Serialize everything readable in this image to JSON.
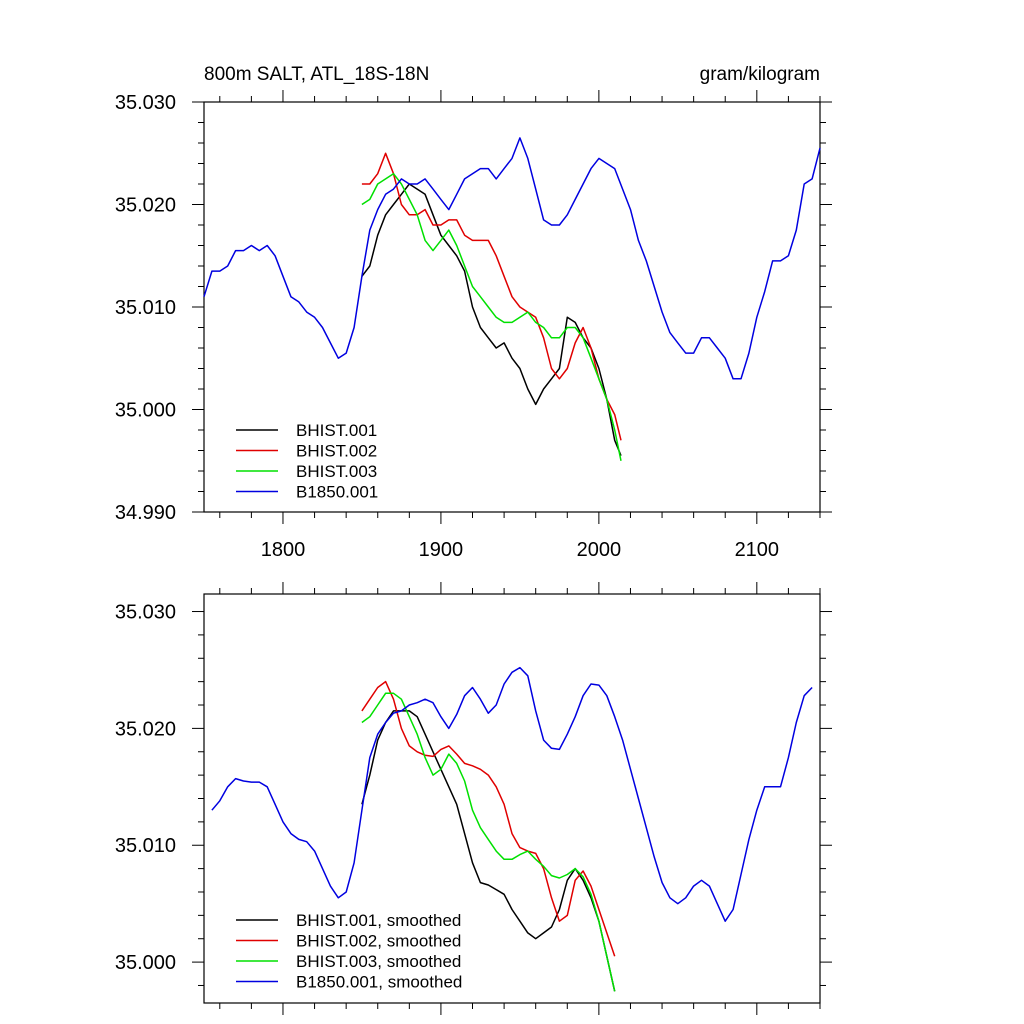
{
  "header": {
    "title": "800m SALT, ATL_18S-18N",
    "units": "gram/kilogram"
  },
  "colors": {
    "BHIST.001": "#000000",
    "BHIST.002": "#e00000",
    "BHIST.003": "#00e000",
    "B1850.001": "#0000e0"
  },
  "chart_data": [
    {
      "type": "line",
      "title": "800m SALT, ATL_18S-18N",
      "subtitle": "gram/kilogram",
      "xlim": [
        1750,
        2140
      ],
      "ylim": [
        34.99,
        35.03
      ],
      "xticks": [
        1800,
        1900,
        2000,
        2100
      ],
      "xtick_labels": [
        "1800",
        "1900",
        "2000",
        "2100"
      ],
      "yticks": [
        34.99,
        35.0,
        35.01,
        35.02,
        35.03
      ],
      "ytick_labels": [
        "34.990",
        "35.000",
        "35.010",
        "35.020",
        "35.030"
      ],
      "legend_position": "bottom-left",
      "series": [
        {
          "name": "BHIST.001",
          "color": "#000000",
          "x": [
            1850,
            1855,
            1860,
            1865,
            1870,
            1875,
            1880,
            1885,
            1890,
            1895,
            1900,
            1905,
            1910,
            1915,
            1920,
            1925,
            1930,
            1935,
            1940,
            1945,
            1950,
            1955,
            1960,
            1965,
            1970,
            1975,
            1980,
            1985,
            1990,
            1995,
            2000,
            2005,
            2010,
            2014
          ],
          "y": [
            35.013,
            35.014,
            35.017,
            35.019,
            35.02,
            35.021,
            35.022,
            35.0215,
            35.021,
            35.019,
            35.017,
            35.016,
            35.015,
            35.0135,
            35.01,
            35.008,
            35.007,
            35.006,
            35.0065,
            35.005,
            35.004,
            35.002,
            35.0005,
            35.002,
            35.003,
            35.004,
            35.009,
            35.0085,
            35.007,
            35.006,
            35.004,
            35.001,
            34.997,
            34.9955
          ]
        },
        {
          "name": "BHIST.002",
          "color": "#e00000",
          "x": [
            1850,
            1855,
            1860,
            1865,
            1870,
            1875,
            1880,
            1885,
            1890,
            1895,
            1900,
            1905,
            1910,
            1915,
            1920,
            1925,
            1930,
            1935,
            1940,
            1945,
            1950,
            1955,
            1960,
            1965,
            1970,
            1975,
            1980,
            1985,
            1990,
            1995,
            2000,
            2005,
            2010,
            2014
          ],
          "y": [
            35.022,
            35.022,
            35.023,
            35.025,
            35.023,
            35.02,
            35.019,
            35.019,
            35.0195,
            35.018,
            35.018,
            35.0185,
            35.0185,
            35.017,
            35.0165,
            35.0165,
            35.0165,
            35.015,
            35.013,
            35.011,
            35.01,
            35.0095,
            35.009,
            35.007,
            35.004,
            35.003,
            35.004,
            35.0065,
            35.008,
            35.006,
            35.003,
            35.001,
            34.9995,
            34.997
          ]
        },
        {
          "name": "BHIST.003",
          "color": "#00e000",
          "x": [
            1850,
            1855,
            1860,
            1865,
            1870,
            1875,
            1880,
            1885,
            1890,
            1895,
            1900,
            1905,
            1910,
            1915,
            1920,
            1925,
            1930,
            1935,
            1940,
            1945,
            1950,
            1955,
            1960,
            1965,
            1970,
            1975,
            1980,
            1985,
            1990,
            1995,
            2000,
            2005,
            2010,
            2014
          ],
          "y": [
            35.02,
            35.0205,
            35.022,
            35.0225,
            35.023,
            35.022,
            35.0205,
            35.019,
            35.0165,
            35.0155,
            35.0165,
            35.0175,
            35.016,
            35.014,
            35.012,
            35.011,
            35.01,
            35.009,
            35.0085,
            35.0085,
            35.009,
            35.0095,
            35.0085,
            35.008,
            35.007,
            35.007,
            35.008,
            35.008,
            35.007,
            35.005,
            35.003,
            35.001,
            34.998,
            34.995
          ]
        },
        {
          "name": "B1850.001",
          "color": "#0000e0",
          "x": [
            1750,
            1755,
            1760,
            1765,
            1770,
            1775,
            1780,
            1785,
            1790,
            1795,
            1800,
            1805,
            1810,
            1815,
            1820,
            1825,
            1830,
            1835,
            1840,
            1845,
            1850,
            1855,
            1860,
            1865,
            1870,
            1875,
            1880,
            1885,
            1890,
            1895,
            1900,
            1905,
            1910,
            1915,
            1920,
            1925,
            1930,
            1935,
            1940,
            1945,
            1950,
            1955,
            1960,
            1965,
            1970,
            1975,
            1980,
            1985,
            1990,
            1995,
            2000,
            2005,
            2010,
            2015,
            2020,
            2025,
            2030,
            2035,
            2040,
            2045,
            2050,
            2055,
            2060,
            2065,
            2070,
            2075,
            2080,
            2085,
            2090,
            2095,
            2100,
            2105,
            2110,
            2115,
            2120,
            2125,
            2130,
            2135,
            2140
          ],
          "y": [
            35.011,
            35.0135,
            35.0135,
            35.014,
            35.0155,
            35.0155,
            35.016,
            35.0155,
            35.016,
            35.015,
            35.013,
            35.011,
            35.0105,
            35.0095,
            35.009,
            35.008,
            35.0065,
            35.005,
            35.0055,
            35.008,
            35.013,
            35.0175,
            35.0195,
            35.021,
            35.0215,
            35.0225,
            35.022,
            35.022,
            35.0225,
            35.0215,
            35.0205,
            35.0195,
            35.021,
            35.0225,
            35.023,
            35.0235,
            35.0235,
            35.0225,
            35.0235,
            35.0245,
            35.0265,
            35.0245,
            35.0215,
            35.0185,
            35.018,
            35.018,
            35.019,
            35.0205,
            35.022,
            35.0235,
            35.0245,
            35.024,
            35.0235,
            35.0215,
            35.0195,
            35.0165,
            35.0145,
            35.012,
            35.0095,
            35.0075,
            35.0065,
            35.0055,
            35.0055,
            35.007,
            35.007,
            35.006,
            35.005,
            35.003,
            35.003,
            35.0055,
            35.009,
            35.0115,
            35.0145,
            35.0145,
            35.015,
            35.0175,
            35.022,
            35.0225,
            35.0255
          ]
        }
      ],
      "legend": [
        "BHIST.001",
        "BHIST.002",
        "BHIST.003",
        "B1850.001"
      ]
    },
    {
      "type": "line",
      "xlim": [
        1750,
        2140
      ],
      "ylim": [
        34.9965,
        35.0315
      ],
      "yticks": [
        35.0,
        35.01,
        35.02,
        35.03
      ],
      "ytick_labels": [
        "35.000",
        "35.010",
        "35.020",
        "35.030"
      ],
      "legend_position": "bottom-left",
      "series": [
        {
          "name": "BHIST.001, smoothed",
          "color": "#000000",
          "x": [
            1850,
            1855,
            1860,
            1865,
            1870,
            1875,
            1880,
            1885,
            1890,
            1895,
            1900,
            1905,
            1910,
            1915,
            1920,
            1925,
            1930,
            1935,
            1940,
            1945,
            1950,
            1955,
            1960,
            1965,
            1970,
            1975,
            1980,
            1985,
            1990,
            1995,
            2000,
            2005,
            2010
          ],
          "y": [
            35.0135,
            35.016,
            35.019,
            35.0205,
            35.0215,
            35.0215,
            35.0215,
            35.021,
            35.0195,
            35.018,
            35.0165,
            35.015,
            35.0135,
            35.011,
            35.0085,
            35.0068,
            35.0066,
            35.0062,
            35.0058,
            35.0045,
            35.0035,
            35.0025,
            35.002,
            35.0025,
            35.003,
            35.0045,
            35.007,
            35.008,
            35.007,
            35.0055,
            35.0035,
            35.0005,
            34.9975
          ]
        },
        {
          "name": "BHIST.002, smoothed",
          "color": "#e00000",
          "x": [
            1850,
            1855,
            1860,
            1865,
            1870,
            1875,
            1880,
            1885,
            1890,
            1895,
            1900,
            1905,
            1910,
            1915,
            1920,
            1925,
            1930,
            1935,
            1940,
            1945,
            1950,
            1955,
            1960,
            1965,
            1970,
            1975,
            1980,
            1985,
            1990,
            1995,
            2000,
            2005,
            2010
          ],
          "y": [
            35.0215,
            35.0225,
            35.0235,
            35.024,
            35.0225,
            35.02,
            35.0185,
            35.018,
            35.0177,
            35.0176,
            35.0182,
            35.0185,
            35.0178,
            35.017,
            35.0168,
            35.0165,
            35.016,
            35.015,
            35.0135,
            35.011,
            35.0098,
            35.0095,
            35.0093,
            35.008,
            35.0055,
            35.0035,
            35.004,
            35.007,
            35.0078,
            35.0065,
            35.0045,
            35.0025,
            35.0005
          ]
        },
        {
          "name": "BHIST.003, smoothed",
          "color": "#00e000",
          "x": [
            1850,
            1855,
            1860,
            1865,
            1870,
            1875,
            1880,
            1885,
            1890,
            1895,
            1900,
            1905,
            1910,
            1915,
            1920,
            1925,
            1930,
            1935,
            1940,
            1945,
            1950,
            1955,
            1960,
            1965,
            1970,
            1975,
            1980,
            1985,
            1990,
            1995,
            2000,
            2005,
            2010
          ],
          "y": [
            35.0205,
            35.021,
            35.022,
            35.023,
            35.023,
            35.0225,
            35.021,
            35.0195,
            35.0175,
            35.016,
            35.0165,
            35.0178,
            35.017,
            35.0155,
            35.013,
            35.0115,
            35.0105,
            35.0095,
            35.0088,
            35.0088,
            35.0092,
            35.0095,
            35.0088,
            35.0082,
            35.0074,
            35.0072,
            35.0075,
            35.008,
            35.0073,
            35.0058,
            35.0035,
            35.0005,
            34.9975
          ]
        },
        {
          "name": "B1850.001, smoothed",
          "color": "#0000e0",
          "x": [
            1755,
            1760,
            1765,
            1770,
            1775,
            1780,
            1785,
            1790,
            1795,
            1800,
            1805,
            1810,
            1815,
            1820,
            1825,
            1830,
            1835,
            1840,
            1845,
            1850,
            1855,
            1860,
            1865,
            1870,
            1875,
            1880,
            1885,
            1890,
            1895,
            1900,
            1905,
            1910,
            1915,
            1920,
            1925,
            1930,
            1935,
            1940,
            1945,
            1950,
            1955,
            1960,
            1965,
            1970,
            1975,
            1980,
            1985,
            1990,
            1995,
            2000,
            2005,
            2010,
            2015,
            2020,
            2025,
            2030,
            2035,
            2040,
            2045,
            2050,
            2055,
            2060,
            2065,
            2070,
            2075,
            2080,
            2085,
            2090,
            2095,
            2100,
            2105,
            2110,
            2115,
            2120,
            2125,
            2130,
            2135
          ],
          "y": [
            35.013,
            35.0138,
            35.015,
            35.0157,
            35.0155,
            35.0154,
            35.0154,
            35.015,
            35.0135,
            35.012,
            35.011,
            35.0105,
            35.0103,
            35.0095,
            35.008,
            35.0065,
            35.0055,
            35.006,
            35.0085,
            35.013,
            35.0175,
            35.0195,
            35.0205,
            35.0213,
            35.0215,
            35.022,
            35.0222,
            35.0225,
            35.0222,
            35.021,
            35.02,
            35.0212,
            35.0228,
            35.0235,
            35.0225,
            35.0213,
            35.022,
            35.0238,
            35.0248,
            35.0252,
            35.0245,
            35.0215,
            35.019,
            35.0183,
            35.0182,
            35.0195,
            35.021,
            35.0228,
            35.0238,
            35.0237,
            35.0228,
            35.021,
            35.019,
            35.0165,
            35.014,
            35.0115,
            35.009,
            35.0068,
            35.0055,
            35.005,
            35.0055,
            35.0065,
            35.007,
            35.0065,
            35.005,
            35.0035,
            35.0045,
            35.0075,
            35.0105,
            35.013,
            35.015,
            35.015,
            35.015,
            35.0175,
            35.0205,
            35.0228,
            35.0235
          ]
        }
      ],
      "legend": [
        "BHIST.001, smoothed",
        "BHIST.002, smoothed",
        "BHIST.003, smoothed",
        "B1850.001, smoothed"
      ]
    }
  ]
}
